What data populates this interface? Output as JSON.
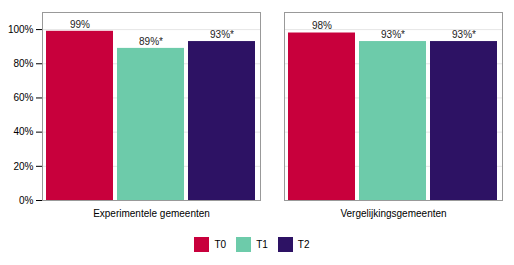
{
  "chart_data": {
    "type": "bar",
    "categories": [
      "Experimentele gemeenten",
      "Vergelijkingsgemeenten"
    ],
    "series": [
      {
        "name": "T0",
        "color": "#C8003C",
        "values": [
          99,
          98
        ],
        "value_labels": [
          "99%",
          "98%"
        ]
      },
      {
        "name": "T1",
        "color": "#6DCBAA",
        "values": [
          89,
          93
        ],
        "value_labels": [
          "89%*",
          "93%*"
        ]
      },
      {
        "name": "T2",
        "color": "#2D1264",
        "values": [
          93,
          93
        ],
        "value_labels": [
          "93%*",
          "93%*"
        ]
      }
    ],
    "ylim": [
      0,
      110
    ],
    "yticks": [
      {
        "value": 0,
        "label": "0%"
      },
      {
        "value": 20,
        "label": "20%"
      },
      {
        "value": 40,
        "label": "40%"
      },
      {
        "value": 60,
        "label": "60%"
      },
      {
        "value": 80,
        "label": "80%"
      },
      {
        "value": 100,
        "label": "100%"
      }
    ],
    "grid": true,
    "data_labels": true,
    "legend": "bottom"
  }
}
